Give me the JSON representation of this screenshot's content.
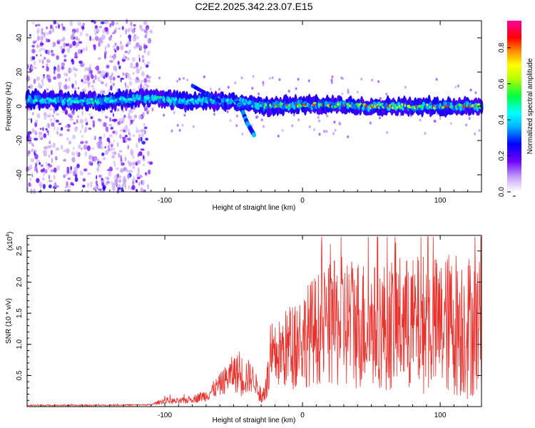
{
  "title": "C2E2.2025.342.23.07.E15",
  "chart_data": [
    {
      "type": "heatmap",
      "name": "spectrogram",
      "xlabel": "Height of straight line (km)",
      "ylabel": "Frequency (Hz)",
      "xlim": [
        -200,
        130
      ],
      "ylim": [
        -50,
        50
      ],
      "xticks": [
        -100,
        0,
        100
      ],
      "yticks": [
        -40,
        -20,
        0,
        20,
        40
      ],
      "noise_region_end_km": -110,
      "signal_track": [
        {
          "x": -195,
          "y": 4
        },
        {
          "x": -150,
          "y": 3
        },
        {
          "x": -110,
          "y": 5
        },
        {
          "x": -90,
          "y": 3
        },
        {
          "x": -70,
          "y": 3
        },
        {
          "x": -50,
          "y": 3
        },
        {
          "x": -30,
          "y": 0
        },
        {
          "x": 0,
          "y": 1
        },
        {
          "x": 50,
          "y": 0
        },
        {
          "x": 100,
          "y": 0
        },
        {
          "x": 130,
          "y": 0
        }
      ],
      "secondary_branch": [
        {
          "x": -50,
          "y": 5
        },
        {
          "x": -45,
          "y": 0
        },
        {
          "x": -40,
          "y": -10
        },
        {
          "x": -35,
          "y": -17
        }
      ],
      "colorbar": {
        "label": "Normalized spectral amplitude",
        "range": [
          0.0,
          0.95
        ],
        "ticks": [
          0.0,
          0.2,
          0.4,
          0.6,
          0.8
        ],
        "tick_labels": [
          "0.0",
          "0.2",
          "0.4",
          "0.6",
          "0.8"
        ]
      }
    },
    {
      "type": "line",
      "name": "snr",
      "xlabel": "Height of straight line (km)",
      "ylabel": "SNR (10 * v/v)",
      "y_multiplier": "(x10",
      "y_multiplier_exp": "4",
      "y_multiplier_close": ")",
      "xlim": [
        -200,
        130
      ],
      "ylim": [
        0,
        2.75
      ],
      "xticks": [
        -100,
        0,
        100
      ],
      "yticks": [
        0.5,
        1.0,
        1.5,
        2.0,
        2.5
      ],
      "ytick_labels": [
        "0.5",
        "1.0",
        "1.5",
        "2.0",
        "2.5"
      ],
      "color": "#e8322e",
      "series": [
        {
          "name": "SNR",
          "x": [
            -200,
            -150,
            -110,
            -100,
            -90,
            -80,
            -70,
            -60,
            -50,
            -45,
            -40,
            -35,
            -30,
            -25,
            -20,
            -10,
            0,
            10,
            20,
            30,
            40,
            50,
            60,
            70,
            80,
            90,
            100,
            110,
            120,
            130
          ],
          "values": [
            0.02,
            0.02,
            0.03,
            0.1,
            0.08,
            0.12,
            0.18,
            0.35,
            0.55,
            0.5,
            0.48,
            0.45,
            0.1,
            0.45,
            0.8,
            0.95,
            1.1,
            1.25,
            1.3,
            1.35,
            1.35,
            1.3,
            1.3,
            1.35,
            1.3,
            1.35,
            1.3,
            1.35,
            1.3,
            1.3
          ],
          "spread": [
            0.01,
            0.01,
            0.01,
            0.05,
            0.05,
            0.06,
            0.1,
            0.18,
            0.3,
            0.35,
            0.3,
            0.2,
            0.08,
            0.35,
            0.5,
            0.7,
            0.8,
            0.9,
            1.0,
            1.1,
            1.1,
            1.0,
            1.05,
            1.1,
            1.1,
            1.15,
            1.1,
            1.2,
            1.2,
            1.1
          ]
        }
      ]
    }
  ]
}
